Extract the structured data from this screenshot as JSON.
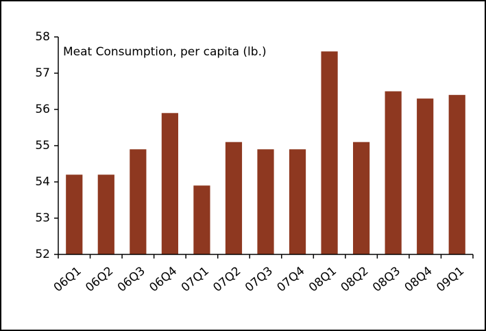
{
  "chart_data": {
    "type": "bar",
    "title": "Meat Consumption, per capita (lb.)",
    "categories": [
      "06Q1",
      "06Q2",
      "06Q3",
      "06Q4",
      "07Q1",
      "07Q2",
      "07Q3",
      "07Q4",
      "08Q1",
      "08Q2",
      "08Q3",
      "08Q4",
      "09Q1"
    ],
    "values": [
      54.2,
      54.2,
      54.9,
      55.9,
      53.9,
      55.1,
      54.9,
      54.9,
      57.6,
      55.1,
      56.5,
      56.3,
      56.4
    ],
    "color": "#8e3820",
    "ylim": [
      52,
      58
    ],
    "yticks": [
      52,
      53,
      54,
      55,
      56,
      57,
      58
    ],
    "grid": false
  }
}
